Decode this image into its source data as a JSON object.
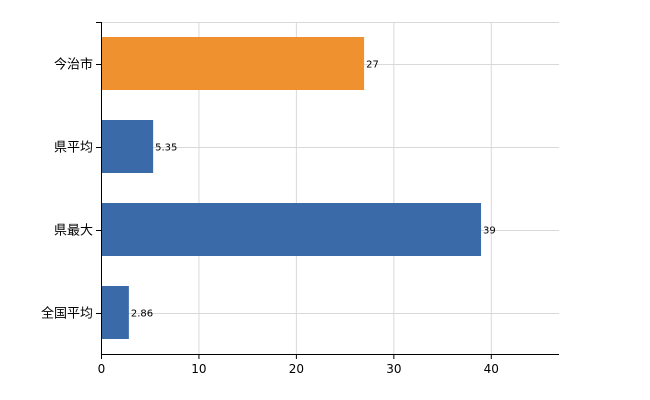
{
  "chart_data": {
    "type": "bar",
    "orientation": "horizontal",
    "categories": [
      "今治市",
      "県平均",
      "県最大",
      "全国平均"
    ],
    "values": [
      27,
      5.35,
      39,
      2.86
    ],
    "data_labels": [
      "27",
      "5.35",
      "39",
      "2.86"
    ],
    "bar_colors": [
      "#f0912f",
      "#3b6aa8",
      "#3b6aa8",
      "#3b6aa8"
    ],
    "xlim": [
      0,
      47
    ],
    "x_ticks": [
      0,
      10,
      20,
      30,
      40
    ],
    "x_tick_labels": [
      "0",
      "10",
      "20",
      "30",
      "40"
    ],
    "grid": true,
    "title": "",
    "xlabel": "",
    "ylabel": ""
  }
}
